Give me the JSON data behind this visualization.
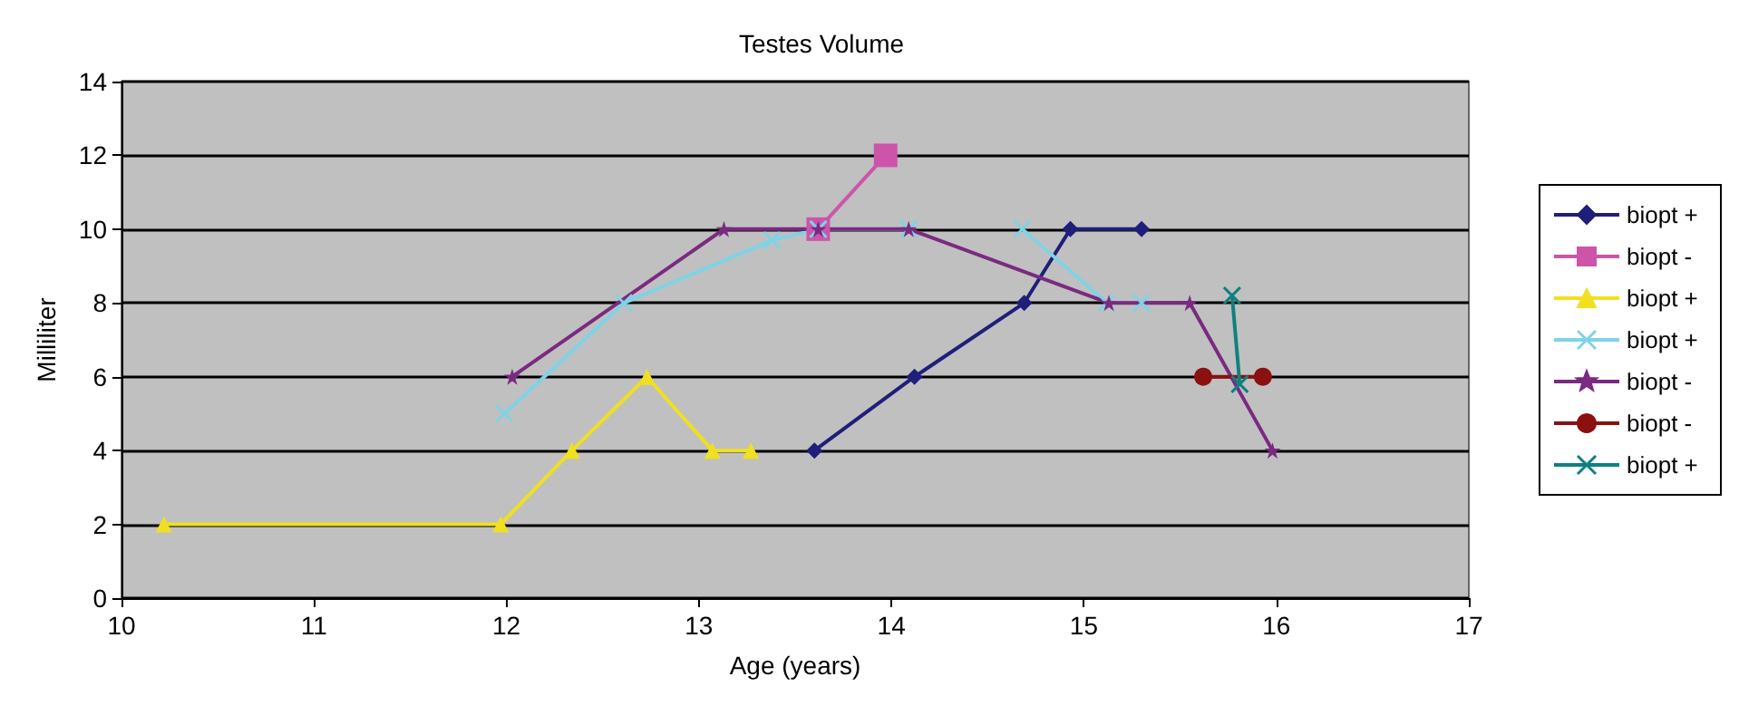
{
  "chart_data": {
    "type": "line",
    "title": "Testes Volume",
    "xlabel": "Age (years)",
    "ylabel": "Milliliter",
    "xlim": [
      10,
      17
    ],
    "xticks": [
      10,
      11,
      12,
      13,
      14,
      15,
      16,
      17
    ],
    "ylim": [
      0,
      14
    ],
    "yticks": [
      0,
      2,
      4,
      6,
      8,
      10,
      12,
      14
    ],
    "grid": "y",
    "legend": "right",
    "series": [
      {
        "name": "biopt +",
        "color": "#1f1f7a",
        "marker": "diamond",
        "x": [
          13.6,
          14.12,
          14.69,
          14.93,
          15.3
        ],
        "values": [
          4,
          6,
          8,
          10,
          10
        ]
      },
      {
        "name": "biopt -",
        "color": "#cc55aa",
        "marker": "square",
        "x": [
          13.62,
          13.97
        ],
        "values": [
          10,
          12
        ]
      },
      {
        "name": "biopt +",
        "color": "#f0e020",
        "marker": "triangle",
        "x": [
          10.22,
          11.97,
          12.34,
          12.73,
          13.07,
          13.27
        ],
        "values": [
          2,
          2,
          4,
          6,
          4,
          4
        ]
      },
      {
        "name": "biopt +",
        "color": "#7fd3e6",
        "marker": "cross",
        "x": [
          11.99,
          12.61,
          13.38,
          13.62,
          14.09,
          14.4,
          14.68,
          15.12,
          15.3
        ],
        "values": [
          5,
          8,
          9.7,
          10,
          10,
          null,
          10,
          8,
          8
        ]
      },
      {
        "name": "biopt -",
        "color": "#7a2a80",
        "marker": "star",
        "x": [
          12.03,
          13.13,
          13.62,
          14.09,
          15.13,
          15.55,
          15.98
        ],
        "values": [
          6,
          10,
          10,
          10,
          8,
          8,
          4
        ]
      },
      {
        "name": "biopt -",
        "color": "#8b1010",
        "marker": "circle",
        "x": [
          15.62,
          15.93
        ],
        "values": [
          6,
          6
        ]
      },
      {
        "name": "biopt +",
        "color": "#108080",
        "marker": "cross",
        "x": [
          15.77,
          15.81
        ],
        "values": [
          8.2,
          5.8
        ]
      }
    ]
  }
}
